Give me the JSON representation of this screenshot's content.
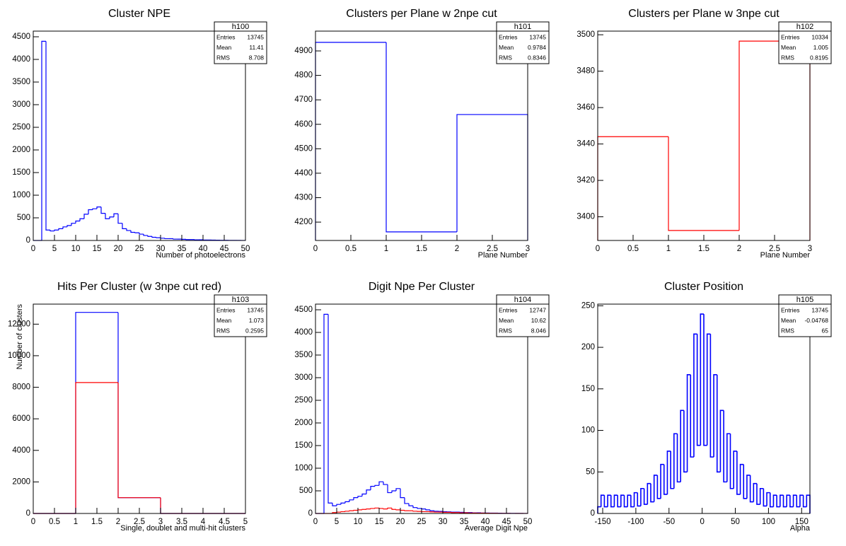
{
  "chart_data": [
    {
      "type": "histogram",
      "title": "Cluster NPE",
      "xlabel": "Number of photoelectrons",
      "stats": {
        "title": "h100",
        "rows": [
          {
            "label": "Entries",
            "value": 13745
          },
          {
            "label": "Mean",
            "value": 11.41
          },
          {
            "label": "RMS",
            "value": 8.708
          }
        ]
      },
      "bins": [
        0,
        1,
        2,
        3,
        4,
        5,
        6,
        7,
        8,
        9,
        10,
        11,
        12,
        13,
        14,
        15,
        16,
        17,
        18,
        19,
        20,
        21,
        22,
        23,
        24,
        25,
        26,
        27,
        28,
        29,
        30,
        31,
        32,
        33,
        34,
        35,
        36,
        37,
        38,
        39,
        40,
        41,
        42,
        43,
        44,
        45,
        46,
        47,
        48,
        49,
        50
      ],
      "values": [
        0,
        0,
        4400,
        230,
        210,
        230,
        260,
        300,
        330,
        380,
        430,
        480,
        580,
        680,
        700,
        740,
        600,
        480,
        520,
        590,
        380,
        260,
        220,
        180,
        170,
        140,
        110,
        90,
        70,
        60,
        50,
        40,
        40,
        30,
        30,
        25,
        20,
        20,
        15,
        15,
        10,
        10,
        8,
        6,
        5,
        4,
        3,
        2,
        2,
        1
      ],
      "color": "#0000ff",
      "xlim": [
        0,
        50
      ],
      "xticks": [
        0,
        5,
        10,
        15,
        20,
        25,
        30,
        35,
        40,
        45,
        50
      ],
      "ylim": [
        0,
        4625
      ],
      "yticks": [
        0,
        500,
        1000,
        1500,
        2000,
        2500,
        3000,
        3500,
        4000,
        4500
      ]
    },
    {
      "type": "histogram",
      "title": "Clusters per Plane w 2npe cut",
      "xlabel": "Plane Number",
      "stats": {
        "title": "h101",
        "rows": [
          {
            "label": "Entries",
            "value": 13745
          },
          {
            "label": "Mean",
            "value": 0.9784
          },
          {
            "label": "RMS",
            "value": 0.8346
          }
        ]
      },
      "bins": [
        0,
        1,
        2,
        3
      ],
      "values": [
        4935,
        4160,
        4640
      ],
      "color": "#0000ff",
      "xlim": [
        0,
        3
      ],
      "xticks": [
        0,
        0.5,
        1,
        1.5,
        2,
        2.5,
        3
      ],
      "ylim": [
        4125,
        4981
      ],
      "yticks": [
        4200,
        4300,
        4400,
        4500,
        4600,
        4700,
        4800,
        4900
      ]
    },
    {
      "type": "histogram",
      "title": "Clusters per Plane w 3npe cut",
      "xlabel": "Plane Number",
      "stats": {
        "title": "h102",
        "rows": [
          {
            "label": "Entries",
            "value": 10334
          },
          {
            "label": "Mean",
            "value": 1.005
          },
          {
            "label": "RMS",
            "value": 0.8195
          }
        ]
      },
      "bins": [
        0,
        1,
        2,
        3
      ],
      "values": [
        3444,
        3392.5,
        3496.5
      ],
      "color": "#ff0000",
      "xlim": [
        0,
        3
      ],
      "xticks": [
        0,
        0.5,
        1,
        1.5,
        2,
        2.5,
        3
      ],
      "ylim": [
        3387,
        3502
      ],
      "yticks": [
        3400,
        3420,
        3440,
        3460,
        3480,
        3500
      ]
    },
    {
      "type": "histogram",
      "title": "Hits Per Cluster (w 3npe cut red)",
      "xlabel": "Single, doublet and multi-hit clusters",
      "ylabel": "Number of clusters",
      "stats": {
        "title": "h103",
        "rows": [
          {
            "label": "Entries",
            "value": 13745
          },
          {
            "label": "Mean",
            "value": 1.073
          },
          {
            "label": "RMS",
            "value": 0.2595
          }
        ]
      },
      "bins": [
        0,
        1,
        2,
        3,
        4,
        5
      ],
      "series": [
        {
          "color": "#0000ff",
          "values": [
            0,
            12745,
            1000,
            0,
            0
          ]
        },
        {
          "color": "#ff0000",
          "values": [
            0,
            8300,
            1000,
            0,
            0
          ]
        }
      ],
      "xlim": [
        0,
        5
      ],
      "xticks": [
        0,
        0.5,
        1,
        1.5,
        2,
        2.5,
        3,
        3.5,
        4,
        4.5,
        5
      ],
      "ylim": [
        0,
        13270
      ],
      "yticks": [
        0,
        2000,
        4000,
        6000,
        8000,
        10000,
        12000
      ]
    },
    {
      "type": "histogram",
      "title": "Digit Npe Per Cluster",
      "xlabel": "Average Digit Npe",
      "stats": {
        "title": "h104",
        "rows": [
          {
            "label": "Entries",
            "value": 12747
          },
          {
            "label": "Mean",
            "value": 10.62
          },
          {
            "label": "RMS",
            "value": 8.046
          }
        ]
      },
      "bins": [
        0,
        1,
        2,
        3,
        4,
        5,
        6,
        7,
        8,
        9,
        10,
        11,
        12,
        13,
        14,
        15,
        16,
        17,
        18,
        19,
        20,
        21,
        22,
        23,
        24,
        25,
        26,
        27,
        28,
        29,
        30,
        31,
        32,
        33,
        34,
        35,
        36,
        37,
        38,
        39,
        40,
        41,
        42,
        43,
        44,
        45,
        46,
        47,
        48,
        49,
        50
      ],
      "series": [
        {
          "color": "#0000ff",
          "values": [
            0,
            0,
            4400,
            230,
            170,
            200,
            230,
            260,
            300,
            350,
            380,
            430,
            520,
            600,
            620,
            700,
            640,
            460,
            500,
            550,
            350,
            220,
            170,
            130,
            110,
            100,
            80,
            60,
            50,
            45,
            40,
            35,
            30,
            30,
            25,
            20,
            20,
            15,
            15,
            10,
            10,
            8,
            8,
            6,
            5,
            4,
            3,
            2,
            2,
            1
          ]
        },
        {
          "color": "#ff0000",
          "values": [
            0,
            0,
            0,
            0,
            20,
            30,
            40,
            50,
            60,
            70,
            80,
            90,
            100,
            110,
            120,
            110,
            100,
            120,
            90,
            80,
            70,
            60,
            60,
            50,
            45,
            40,
            40,
            35,
            30,
            30,
            25,
            25,
            20,
            20,
            15,
            15,
            10,
            10,
            8,
            8,
            6,
            5,
            4,
            3,
            2,
            2,
            1,
            1,
            1,
            1
          ]
        }
      ],
      "xlim": [
        0,
        50
      ],
      "xticks": [
        0,
        5,
        10,
        15,
        20,
        25,
        30,
        35,
        40,
        45,
        50
      ],
      "ylim": [
        0,
        4625
      ],
      "yticks": [
        0,
        500,
        1000,
        1500,
        2000,
        2500,
        3000,
        3500,
        4000,
        4500
      ]
    },
    {
      "type": "histogram",
      "title": "Cluster Position",
      "xlabel": "Alpha",
      "stats": {
        "title": "h105",
        "rows": [
          {
            "label": "Entries",
            "value": 13745
          },
          {
            "label": "Mean",
            "value": -0.04768
          },
          {
            "label": "RMS",
            "value": 65
          }
        ]
      },
      "bins": [
        -157.5,
        -152.5,
        -147.5,
        -142.5,
        -137.5,
        -132.5,
        -127.5,
        -122.5,
        -117.5,
        -112.5,
        -107.5,
        -102.5,
        -97.5,
        -92.5,
        -87.5,
        -82.5,
        -77.5,
        -72.5,
        -67.5,
        -62.5,
        -57.5,
        -52.5,
        -47.5,
        -42.5,
        -37.5,
        -32.5,
        -27.5,
        -22.5,
        -17.5,
        -12.5,
        -7.5,
        -2.5,
        2.5,
        7.5,
        12.5,
        17.5,
        22.5,
        27.5,
        32.5,
        37.5,
        42.5,
        47.5,
        52.5,
        57.5,
        62.5,
        67.5,
        72.5,
        77.5,
        82.5,
        87.5,
        92.5,
        97.5,
        102.5,
        107.5,
        112.5,
        117.5,
        122.5,
        127.5,
        132.5,
        137.5,
        142.5,
        147.5,
        152.5,
        157.5,
        162.5
      ],
      "values": [
        8,
        22,
        8,
        22,
        8,
        22,
        8,
        22,
        8,
        22,
        8,
        25,
        9,
        30,
        11,
        36,
        14,
        46,
        18,
        59,
        23,
        75,
        30,
        96,
        38,
        124,
        50,
        167,
        68,
        216,
        82,
        240,
        82,
        216,
        68,
        167,
        50,
        124,
        38,
        96,
        30,
        75,
        23,
        59,
        18,
        46,
        14,
        36,
        11,
        30,
        9,
        25,
        8,
        22,
        8,
        22,
        8,
        22,
        8,
        22,
        8,
        22,
        8,
        22
      ],
      "color": "#0000ff",
      "linewidth": 1.6,
      "xlim": [
        -157.5,
        162.5
      ],
      "xticks": [
        -150,
        -100,
        -50,
        0,
        50,
        100,
        150
      ],
      "ylim": [
        0,
        252
      ],
      "yticks": [
        0,
        50,
        100,
        150,
        200,
        250
      ]
    }
  ]
}
